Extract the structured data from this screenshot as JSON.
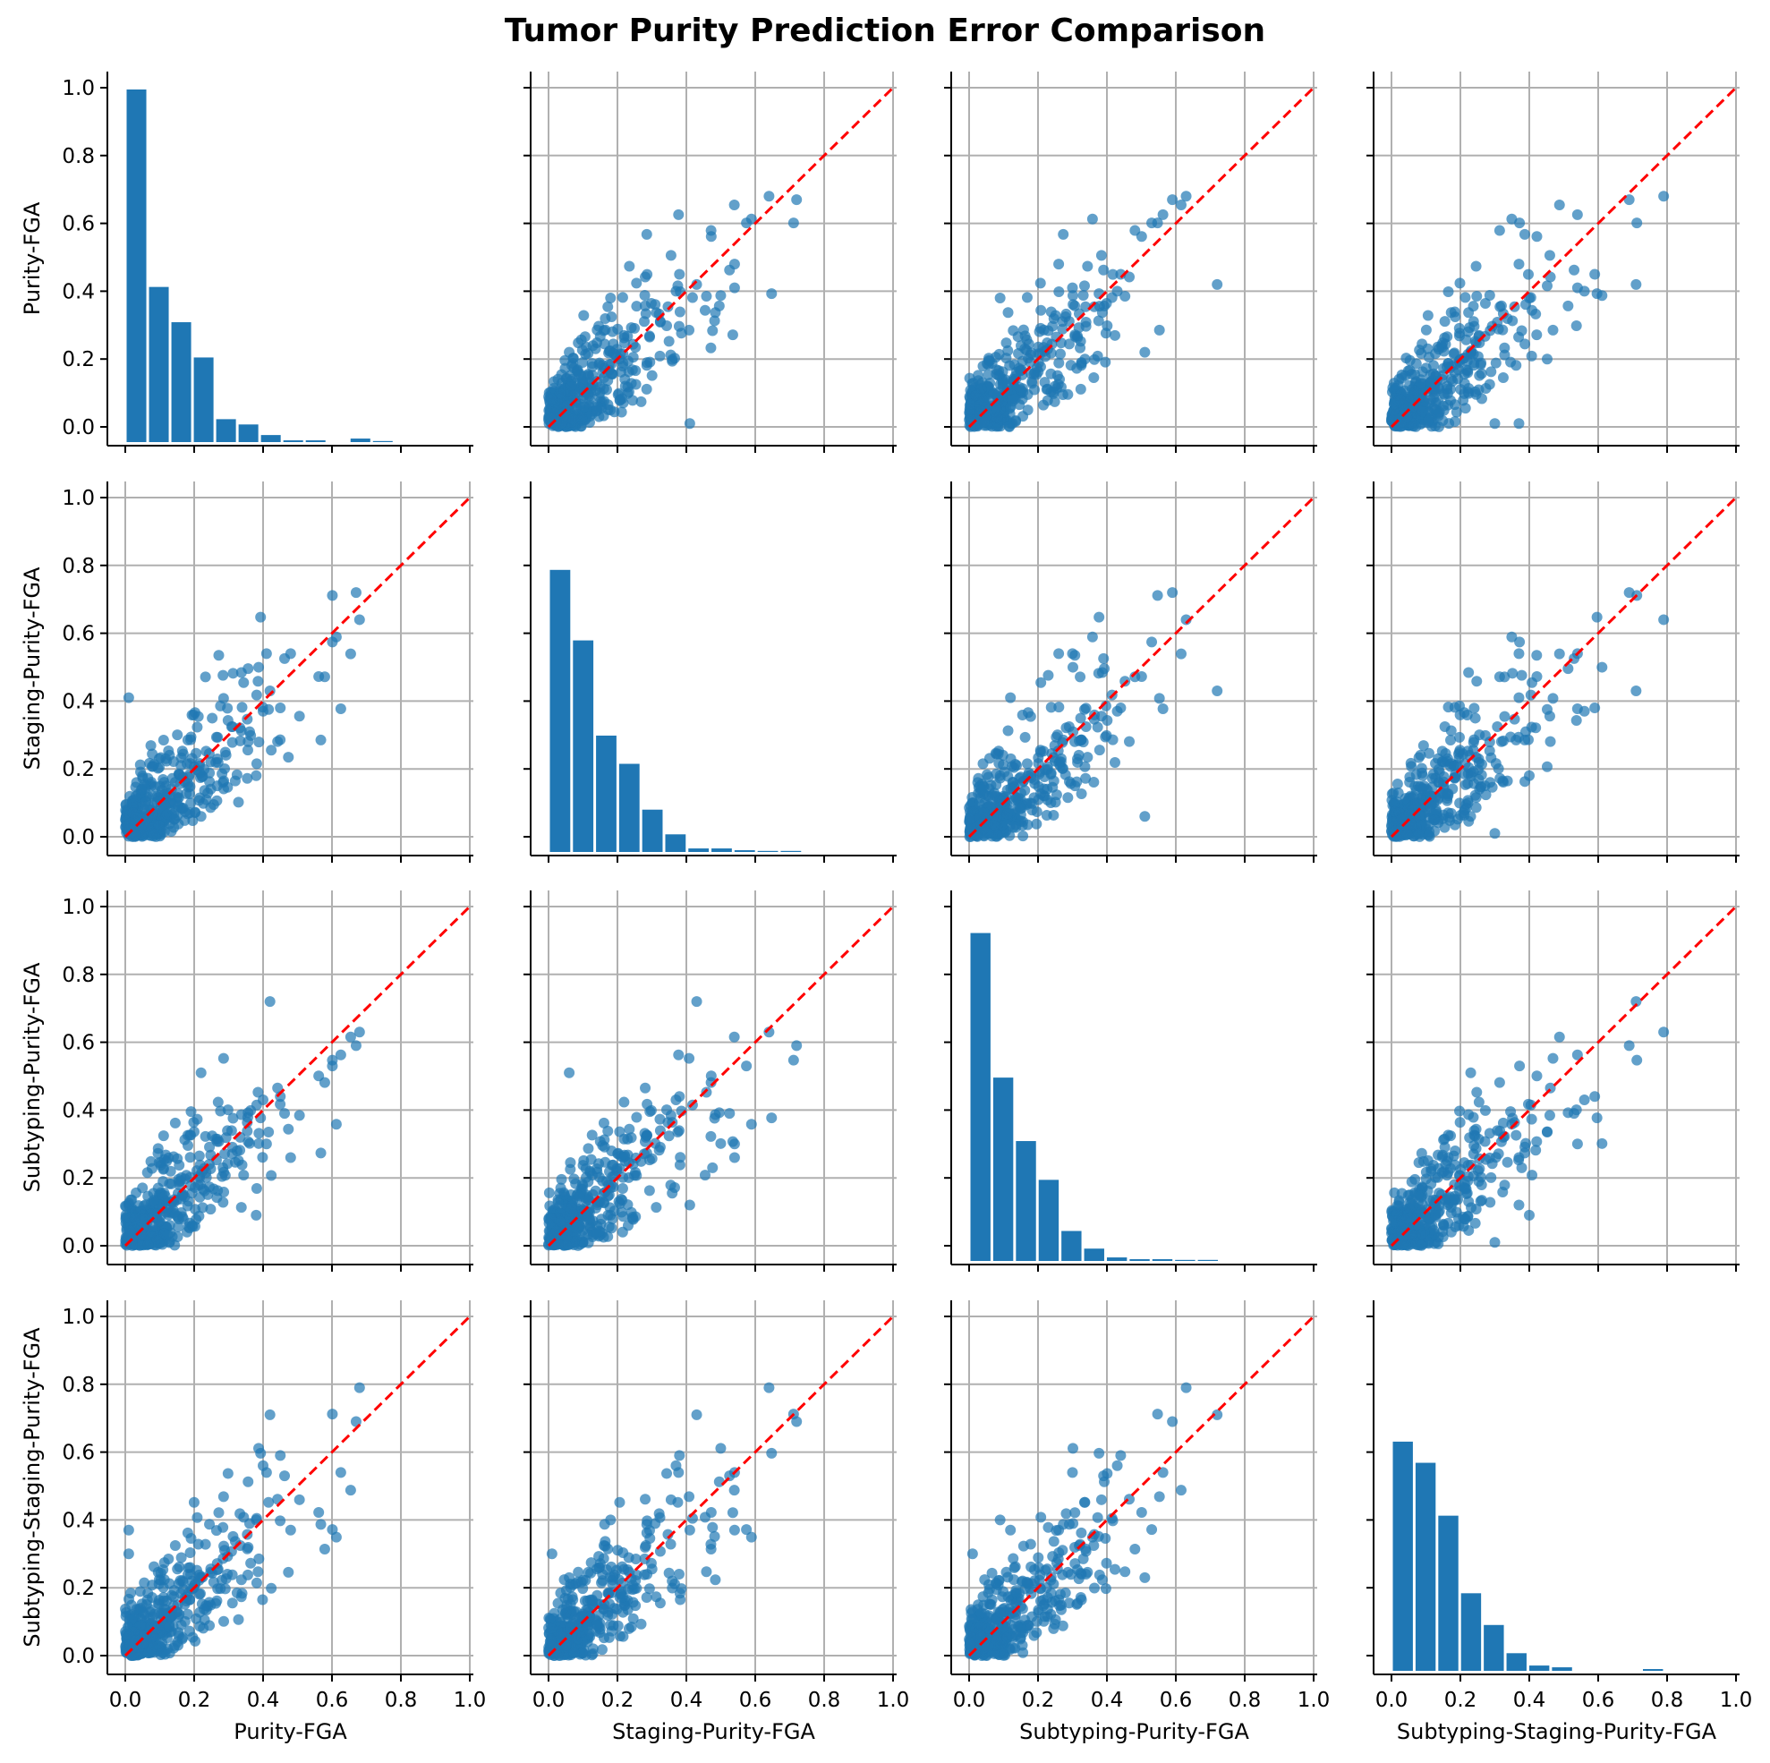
{
  "chart_data": {
    "type": "scatter",
    "title": "Tumor Purity Prediction Error Comparison",
    "variables": [
      "Purity-FGA",
      "Staging-Purity-FGA",
      "Subtyping-Purity-FGA",
      "Subtyping-Staging-Purity-FGA"
    ],
    "layout": "4x4 pair plot: histograms on diagonal, scatter off-diagonal with y=x reference line",
    "axis_range": [
      0.0,
      1.0
    ],
    "ticks": [
      "0.0",
      "0.2",
      "0.4",
      "0.6",
      "0.8",
      "1.0"
    ],
    "grid": true,
    "reference_line": {
      "style": "dashed",
      "color": "#ff0000",
      "from": [
        0,
        0
      ],
      "to": [
        1,
        1
      ]
    },
    "histogram_bin_edges": [
      0.0,
      0.0667,
      0.1333,
      0.2,
      0.2667,
      0.3333,
      0.4,
      0.4667,
      0.5333,
      0.6,
      0.6667,
      0.7333,
      0.8,
      0.8667
    ],
    "histograms": [
      {
        "name": "Purity-FGA",
        "bin_edges": [
          0.0,
          0.065,
          0.13,
          0.195,
          0.26,
          0.325,
          0.39,
          0.455,
          0.52,
          0.585,
          0.65,
          0.715,
          0.78
        ],
        "heights": [
          1.0,
          0.44,
          0.34,
          0.24,
          0.065,
          0.05,
          0.02,
          0.005,
          0.005,
          0.0,
          0.01,
          0.003
        ]
      },
      {
        "name": "Staging-Purity-FGA",
        "bin_edges": [
          0.0,
          0.067,
          0.134,
          0.201,
          0.268,
          0.335,
          0.402,
          0.469,
          0.536,
          0.603,
          0.67,
          0.737
        ],
        "heights": [
          0.8,
          0.6,
          0.33,
          0.25,
          0.12,
          0.05,
          0.01,
          0.01,
          0.005,
          0.003,
          0.003
        ]
      },
      {
        "name": "Subtyping-Purity-FGA",
        "bin_edges": [
          0.0,
          0.066,
          0.132,
          0.198,
          0.264,
          0.33,
          0.396,
          0.462,
          0.528,
          0.594,
          0.66,
          0.726
        ],
        "heights": [
          0.93,
          0.52,
          0.34,
          0.23,
          0.085,
          0.035,
          0.01,
          0.005,
          0.005,
          0.003,
          0.003
        ]
      },
      {
        "name": "Subtyping-Staging-Purity-FGA",
        "bin_edges": [
          0.0,
          0.066,
          0.132,
          0.198,
          0.264,
          0.33,
          0.396,
          0.462,
          0.528,
          0.594,
          0.66,
          0.726,
          0.792
        ],
        "heights": [
          0.65,
          0.59,
          0.44,
          0.22,
          0.13,
          0.05,
          0.015,
          0.01,
          0.0,
          0.0,
          0.0,
          0.005
        ]
      }
    ],
    "notable_points": [
      {
        "Purity-FGA": 0.68,
        "Staging-Purity-FGA": 0.64,
        "Subtyping-Purity-FGA": 0.63,
        "Subtyping-Staging-Purity-FGA": 0.79
      },
      {
        "Purity-FGA": 0.67,
        "Staging-Purity-FGA": 0.72,
        "Subtyping-Purity-FGA": 0.59,
        "Subtyping-Staging-Purity-FGA": 0.69
      },
      {
        "Purity-FGA": 0.42,
        "Staging-Purity-FGA": 0.43,
        "Subtyping-Purity-FGA": 0.72,
        "Subtyping-Staging-Purity-FGA": 0.71
      },
      {
        "Purity-FGA": 0.48,
        "Staging-Purity-FGA": 0.54,
        "Subtyping-Purity-FGA": 0.26,
        "Subtyping-Staging-Purity-FGA": 0.37
      },
      {
        "Purity-FGA": 0.41,
        "Staging-Purity-FGA": 0.54,
        "Subtyping-Purity-FGA": 0.3,
        "Subtyping-Staging-Purity-FGA": 0.54
      },
      {
        "Purity-FGA": 0.22,
        "Staging-Purity-FGA": 0.06,
        "Subtyping-Purity-FGA": 0.51,
        "Subtyping-Staging-Purity-FGA": 0.23
      },
      {
        "Purity-FGA": 0.01,
        "Staging-Purity-FGA": 0.41,
        "Subtyping-Purity-FGA": 0.12,
        "Subtyping-Staging-Purity-FGA": 0.37
      },
      {
        "Purity-FGA": 0.45,
        "Staging-Purity-FGA": 0.38,
        "Subtyping-Purity-FGA": 0.44,
        "Subtyping-Staging-Purity-FGA": 0.59
      },
      {
        "Purity-FGA": 0.4,
        "Staging-Purity-FGA": 0.37,
        "Subtyping-Purity-FGA": 0.43,
        "Subtyping-Staging-Purity-FGA": 0.56
      },
      {
        "Purity-FGA": 0.38,
        "Staging-Purity-FGA": 0.18,
        "Subtyping-Purity-FGA": 0.09,
        "Subtyping-Staging-Purity-FGA": 0.4
      },
      {
        "Purity-FGA": 0.01,
        "Staging-Purity-FGA": 0.01,
        "Subtyping-Purity-FGA": 0.01,
        "Subtyping-Staging-Purity-FGA": 0.3
      }
    ],
    "random_point_cloud": {
      "count": 430,
      "mean": 0.15,
      "spread": "exponential, max ~0.6"
    },
    "colors": {
      "points": "#1f77b4",
      "bars": "#1f77b4",
      "reference_line": "#ff0000",
      "grid": "#b0b0b0"
    }
  }
}
